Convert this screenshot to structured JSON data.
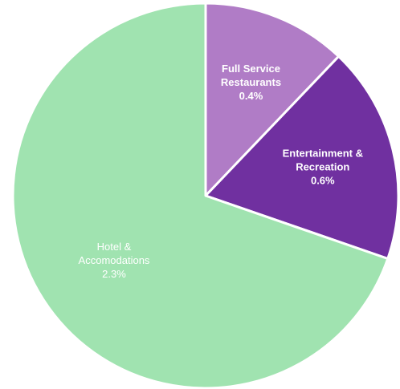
{
  "chart_data": {
    "type": "pie",
    "start_angle_deg": 0,
    "direction": "clockwise",
    "slices": [
      {
        "label_lines": [
          "Full Service",
          "Restaurants"
        ],
        "value_label": "0.4%",
        "value": 0.4,
        "color": "#B07CC6",
        "label_color": "#ffffff",
        "label_weight": "bold"
      },
      {
        "label_lines": [
          "Entertainment &",
          "Recreation"
        ],
        "value_label": "0.6%",
        "value": 0.6,
        "color": "#7030A0",
        "label_color": "#ffffff",
        "label_weight": "bold"
      },
      {
        "label_lines": [
          "Hotel &",
          "Accomodations"
        ],
        "value_label": "2.3%",
        "value": 2.3,
        "color": "#A0E3B0",
        "label_color": "#ffffff",
        "label_weight": "normal"
      }
    ]
  }
}
